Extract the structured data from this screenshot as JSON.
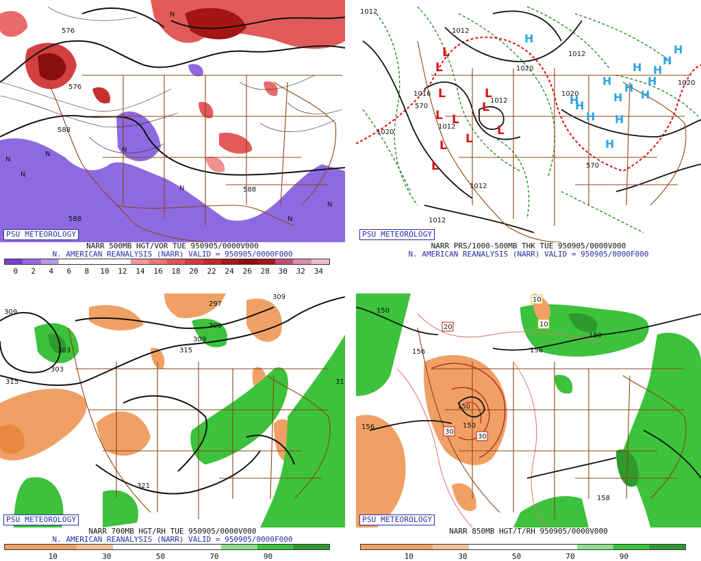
{
  "panels": [
    {
      "id": "p1",
      "badge": "PSU METEOROLOGY",
      "line1": "NARR 500MB HGT/VOR TUE 950905/0000V000",
      "line2": "N. AMERICAN REANALYSIS (NARR) VALID = 950905/0000F000",
      "contour_labels": [
        "576",
        "588",
        "588",
        "588",
        "576",
        "N",
        "N",
        "N",
        "N",
        "N",
        "N",
        "N",
        "N"
      ],
      "scale_ticks": [
        "0",
        "2",
        "4",
        "6",
        "8",
        "10",
        "12",
        "14",
        "16",
        "18",
        "20",
        "22",
        "24",
        "26",
        "28",
        "30",
        "32",
        "34"
      ],
      "scale_colors": [
        "#7a3fd6",
        "#9a68e0",
        "#b99ae8",
        "#ffffff",
        "#ffffff",
        "#ffffff",
        "#ffffff",
        "#f19a9a",
        "#ec7676",
        "#e45454",
        "#d63a3a",
        "#c42828",
        "#a81818",
        "#8e0f0f",
        "#a6141a",
        "#c0507a",
        "#dc8cae",
        "#f0bcd0"
      ]
    },
    {
      "id": "p2",
      "badge": "PSU METEOROLOGY",
      "line1": "NARR PRS/1000-500MB THK TUE 950905/0000V000",
      "line2": "N. AMERICAN REANALYSIS (NARR) VALID = 950905/0000F000",
      "contour_labels": [
        "1012",
        "1012",
        "1012",
        "1020",
        "1020",
        "1020",
        "1012",
        "1012",
        "570",
        "570",
        "1012",
        "1012",
        "1020",
        "1016"
      ],
      "low_symbols": [
        "L",
        "L",
        "L",
        "L",
        "L",
        "L",
        "L",
        "L",
        "L",
        "L",
        "L"
      ],
      "high_symbols": [
        "H",
        "H",
        "H",
        "H",
        "H",
        "H",
        "H",
        "H",
        "H",
        "H",
        "H",
        "H",
        "H",
        "H",
        "H"
      ]
    },
    {
      "id": "p3",
      "badge": "PSU METEOROLOGY",
      "line1": "NARR 700MB HGT/RH TUE 950905/0000V000",
      "line2": "N. AMERICAN REANALYSIS (NARR) VALID = 950905/0000F000",
      "contour_labels": [
        "309",
        "309",
        "315",
        "297",
        "309",
        "309",
        "303",
        "315",
        "321",
        "31",
        "303"
      ],
      "scale_ticks": [
        "10",
        "30",
        "50",
        "70",
        "90"
      ],
      "scale_colors": [
        "#f0a064",
        "#f0a064",
        "#f4c096",
        "#ffffff",
        "#ffffff",
        "#ffffff",
        "#8ee08e",
        "#3cc23c",
        "#2e9a2e"
      ]
    },
    {
      "id": "p4",
      "badge": "PSU METEOROLOGY",
      "line1": "NARR 850MB HGT/T/RH 950905/0000V000",
      "contour_labels": [
        "150",
        "156",
        "150",
        "156",
        "156",
        "150",
        "158",
        "150"
      ],
      "boxed_labels": [
        "20",
        "30",
        "30",
        "10",
        "10"
      ],
      "scale_ticks": [
        "10",
        "30",
        "50",
        "70",
        "90"
      ],
      "scale_colors": [
        "#f0a064",
        "#f0a064",
        "#f4c096",
        "#ffffff",
        "#ffffff",
        "#ffffff",
        "#8ee08e",
        "#3cc23c",
        "#2e9a2e"
      ]
    }
  ]
}
